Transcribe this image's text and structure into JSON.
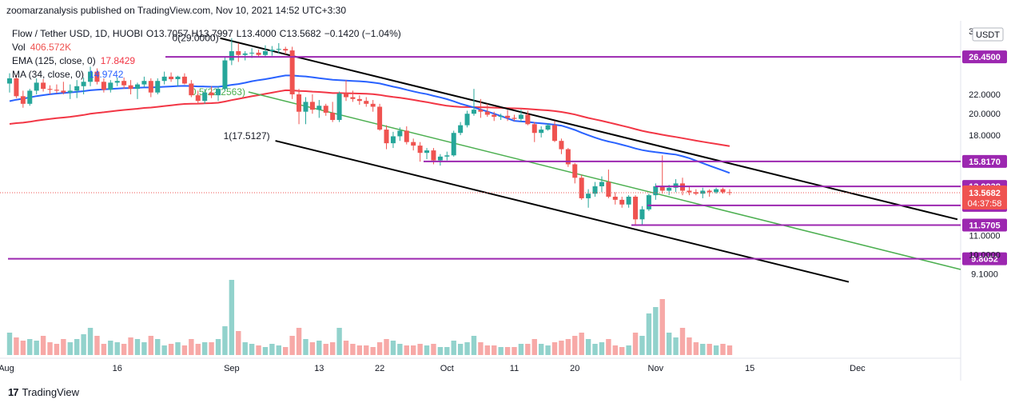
{
  "header": {
    "published": "zoomarzanalysis published on TradingView.com, Nov 10, 2021 14:52 UTC+3:30"
  },
  "legend": {
    "symbol": "Flow / Tether USD, 1D, HUOBI",
    "o": "O13.7057",
    "h": "H13.7997",
    "l": "L13.4000",
    "c": "C13.5682",
    "chg": "−0.1420 (−1.04%)",
    "vol_label": "Vol",
    "vol_value": "406.572K",
    "ema_label": "EMA (125, close, 0)",
    "ema_value": "17.8429",
    "ma_label": "MA (34, close, 0)",
    "ma_value": "14.9742"
  },
  "footer": {
    "brand": "TradingView",
    "logo": "17"
  },
  "colors": {
    "up": "#26a69a",
    "down": "#ef5350",
    "ema": "#f23645",
    "ma": "#2962ff",
    "level": "#9c27b0",
    "channel": "#000000",
    "mid": "#4caf50",
    "text": "#131722"
  },
  "chart_data": {
    "type": "candlestick",
    "y_scale": "log",
    "ylim": [
      8.5,
      31.5
    ],
    "currency_label": "USDT",
    "x_tick_labels": [
      "Aug",
      "16",
      "Sep",
      "13",
      "22",
      "Oct",
      "11",
      "20",
      "Nov",
      "15",
      "Dec"
    ],
    "y_tick_labels": [
      "30.0000",
      "22.0000",
      "20.0000",
      "18.0000",
      "11.0000",
      "10.0000",
      "9.1000"
    ],
    "price_levels": [
      "26.4500",
      "15.8170",
      "13.9938",
      "12.7447",
      "11.5705",
      "9.8052"
    ],
    "current_price": "13.5682",
    "countdown": "04:37:58",
    "channel_labels": [
      "0(29.0000)",
      "0.5(22.2563)",
      "1(17.5127)"
    ],
    "candles": [
      [
        23.2,
        24.4,
        22.2,
        23.8
      ],
      [
        23.8,
        24.2,
        21.6,
        21.8
      ],
      [
        21.8,
        22.4,
        20.6,
        21.0
      ],
      [
        21.0,
        22.6,
        20.8,
        22.4
      ],
      [
        22.4,
        23.8,
        22.0,
        23.3
      ],
      [
        23.3,
        23.7,
        22.3,
        22.6
      ],
      [
        22.6,
        23.0,
        22.0,
        22.5
      ],
      [
        22.5,
        23.1,
        22.1,
        22.4
      ],
      [
        22.4,
        23.4,
        22.0,
        22.2
      ],
      [
        22.2,
        23.1,
        21.5,
        22.4
      ],
      [
        22.4,
        23.6,
        21.6,
        22.9
      ],
      [
        22.9,
        23.9,
        22.0,
        23.4
      ],
      [
        23.4,
        25.2,
        22.9,
        24.6
      ],
      [
        24.6,
        25.0,
        23.1,
        23.4
      ],
      [
        23.4,
        23.8,
        22.2,
        22.5
      ],
      [
        22.5,
        23.6,
        22.2,
        23.3
      ],
      [
        23.3,
        23.9,
        22.9,
        23.5
      ],
      [
        23.5,
        23.9,
        22.6,
        23.0
      ],
      [
        23.0,
        23.6,
        22.0,
        22.6
      ],
      [
        22.6,
        23.3,
        21.5,
        23.1
      ],
      [
        23.1,
        24.0,
        22.8,
        23.5
      ],
      [
        23.5,
        23.8,
        21.7,
        22.2
      ],
      [
        22.2,
        23.8,
        22.0,
        23.5
      ],
      [
        23.5,
        24.6,
        23.1,
        24.0
      ],
      [
        24.0,
        24.5,
        23.4,
        23.7
      ],
      [
        23.7,
        24.1,
        22.9,
        24.0
      ],
      [
        24.0,
        24.4,
        23.1,
        23.2
      ],
      [
        23.2,
        23.6,
        21.7,
        21.9
      ],
      [
        21.9,
        22.4,
        21.0,
        21.3
      ],
      [
        21.3,
        22.6,
        21.0,
        22.2
      ],
      [
        22.2,
        22.9,
        21.6,
        21.9
      ],
      [
        21.9,
        22.9,
        21.3,
        22.6
      ],
      [
        22.6,
        26.4,
        22.4,
        26.0
      ],
      [
        26.0,
        29.0,
        25.4,
        27.2
      ],
      [
        27.2,
        28.3,
        25.8,
        26.7
      ],
      [
        26.7,
        27.2,
        26.0,
        26.9
      ],
      [
        26.9,
        27.6,
        26.3,
        27.0
      ],
      [
        27.0,
        27.4,
        26.4,
        26.7
      ],
      [
        26.7,
        28.0,
        26.4,
        27.2
      ],
      [
        27.2,
        27.9,
        26.6,
        27.4
      ],
      [
        27.4,
        28.3,
        26.9,
        27.5
      ],
      [
        27.5,
        27.8,
        26.8,
        27.3
      ],
      [
        27.3,
        27.8,
        21.5,
        22.0
      ],
      [
        22.0,
        22.6,
        19.0,
        20.2
      ],
      [
        20.2,
        21.7,
        19.0,
        21.2
      ],
      [
        21.2,
        22.0,
        20.0,
        20.4
      ],
      [
        20.4,
        21.4,
        19.6,
        20.8
      ],
      [
        20.8,
        21.0,
        19.8,
        20.1
      ],
      [
        20.1,
        21.2,
        19.2,
        19.4
      ],
      [
        19.4,
        22.3,
        19.2,
        22.1
      ],
      [
        22.1,
        23.6,
        21.3,
        21.7
      ],
      [
        21.7,
        22.4,
        21.2,
        21.5
      ],
      [
        21.5,
        21.9,
        20.9,
        21.3
      ],
      [
        21.3,
        21.7,
        20.7,
        21.0
      ],
      [
        21.0,
        21.4,
        20.2,
        20.7
      ],
      [
        20.7,
        21.0,
        18.4,
        18.5
      ],
      [
        18.5,
        18.9,
        16.8,
        17.3
      ],
      [
        17.3,
        18.3,
        16.9,
        17.9
      ],
      [
        17.9,
        18.7,
        17.5,
        18.4
      ],
      [
        18.4,
        18.8,
        17.2,
        17.4
      ],
      [
        17.4,
        17.7,
        16.7,
        17.1
      ],
      [
        17.1,
        17.4,
        15.8,
        16.5
      ],
      [
        16.5,
        16.9,
        16.0,
        16.7
      ],
      [
        16.7,
        16.9,
        15.6,
        15.9
      ],
      [
        15.9,
        16.4,
        15.5,
        16.2
      ],
      [
        16.2,
        16.6,
        15.9,
        16.3
      ],
      [
        16.3,
        18.4,
        16.2,
        18.2
      ],
      [
        18.2,
        19.2,
        18.0,
        18.9
      ],
      [
        18.9,
        20.3,
        18.7,
        20.0
      ],
      [
        20.0,
        22.6,
        19.8,
        20.4
      ],
      [
        20.4,
        21.5,
        19.6,
        20.2
      ],
      [
        20.2,
        21.0,
        19.7,
        19.9
      ],
      [
        19.9,
        20.2,
        19.3,
        19.7
      ],
      [
        19.7,
        20.0,
        19.4,
        19.8
      ],
      [
        19.8,
        20.4,
        19.3,
        19.6
      ],
      [
        19.6,
        19.9,
        19.3,
        19.5
      ],
      [
        19.5,
        20.4,
        19.2,
        19.9
      ],
      [
        19.9,
        20.3,
        18.9,
        19.0
      ],
      [
        19.0,
        19.2,
        17.4,
        18.2
      ],
      [
        18.2,
        18.8,
        17.8,
        18.5
      ],
      [
        18.5,
        19.1,
        18.4,
        18.9
      ],
      [
        18.9,
        19.3,
        17.4,
        17.5
      ],
      [
        17.5,
        17.7,
        16.4,
        16.8
      ],
      [
        16.8,
        16.9,
        15.4,
        15.6
      ],
      [
        15.6,
        15.7,
        14.2,
        14.6
      ],
      [
        14.6,
        14.8,
        13.1,
        13.2
      ],
      [
        13.2,
        13.8,
        12.6,
        13.5
      ],
      [
        13.5,
        14.3,
        13.3,
        14.0
      ],
      [
        14.0,
        14.7,
        13.6,
        14.3
      ],
      [
        14.3,
        15.2,
        13.2,
        13.3
      ],
      [
        13.3,
        13.6,
        12.8,
        13.1
      ],
      [
        13.1,
        13.3,
        12.6,
        12.8
      ],
      [
        12.8,
        13.4,
        12.6,
        13.3
      ],
      [
        13.3,
        13.4,
        11.6,
        11.9
      ],
      [
        11.9,
        12.7,
        11.6,
        12.5
      ],
      [
        12.5,
        13.5,
        12.4,
        13.4
      ],
      [
        13.4,
        14.2,
        13.1,
        14.0
      ],
      [
        14.0,
        16.3,
        13.5,
        13.7
      ],
      [
        13.7,
        14.1,
        13.4,
        13.9
      ],
      [
        13.9,
        14.5,
        13.6,
        14.2
      ],
      [
        14.2,
        14.6,
        13.4,
        13.7
      ],
      [
        13.7,
        14.0,
        13.4,
        13.6
      ],
      [
        13.6,
        13.8,
        13.4,
        13.5
      ],
      [
        13.5,
        13.9,
        13.2,
        13.7
      ],
      [
        13.7,
        13.8,
        13.3,
        13.6
      ],
      [
        13.6,
        13.9,
        13.5,
        13.8
      ],
      [
        13.8,
        13.9,
        13.5,
        13.6
      ],
      [
        13.6,
        13.8,
        13.4,
        13.56
      ]
    ],
    "volume_ratio": [
      0.14,
      0.11,
      0.09,
      0.1,
      0.09,
      0.12,
      0.08,
      0.07,
      0.1,
      0.08,
      0.1,
      0.13,
      0.17,
      0.12,
      0.07,
      0.09,
      0.08,
      0.07,
      0.11,
      0.1,
      0.08,
      0.12,
      0.1,
      0.06,
      0.07,
      0.08,
      0.06,
      0.1,
      0.07,
      0.08,
      0.08,
      0.1,
      0.18,
      0.47,
      0.15,
      0.08,
      0.07,
      0.06,
      0.05,
      0.07,
      0.06,
      0.05,
      0.12,
      0.17,
      0.1,
      0.08,
      0.09,
      0.07,
      0.08,
      0.17,
      0.09,
      0.07,
      0.06,
      0.06,
      0.05,
      0.08,
      0.1,
      0.09,
      0.07,
      0.06,
      0.06,
      0.07,
      0.06,
      0.07,
      0.05,
      0.05,
      0.09,
      0.07,
      0.08,
      0.12,
      0.08,
      0.06,
      0.06,
      0.05,
      0.05,
      0.05,
      0.07,
      0.07,
      0.1,
      0.07,
      0.06,
      0.08,
      0.09,
      0.1,
      0.12,
      0.14,
      0.1,
      0.07,
      0.08,
      0.1,
      0.06,
      0.05,
      0.06,
      0.14,
      0.12,
      0.26,
      0.3,
      0.35,
      0.14,
      0.11,
      0.17,
      0.11,
      0.08,
      0.07,
      0.07,
      0.06,
      0.07,
      0.06,
      0.05
    ]
  }
}
